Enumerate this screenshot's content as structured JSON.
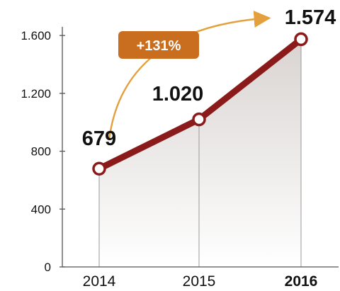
{
  "chart_data": {
    "type": "area",
    "title": "",
    "xlabel": "",
    "ylabel": "",
    "categories": [
      "2014",
      "2015",
      "2016"
    ],
    "highlight_category": "2016",
    "series": [
      {
        "values": [
          679,
          1020,
          1574
        ]
      }
    ],
    "data_labels": [
      "679",
      "1.020",
      "1.574"
    ],
    "y_ticks": [
      0,
      400,
      800,
      1200,
      1600
    ],
    "y_tick_labels": [
      "0",
      "400",
      "800",
      "1.200",
      "1.600"
    ],
    "ylim": [
      0,
      1650
    ],
    "grid": false,
    "legend": "none",
    "annotation": {
      "text": "+131%",
      "from": "2014",
      "to": "2016"
    },
    "colors": {
      "line": "#8b1a1a",
      "marker_fill": "#ffffff",
      "area_top": "#d9d4d2",
      "badge": "#c96d1e",
      "arrow": "#e3a03c",
      "axis": "#555555"
    }
  }
}
